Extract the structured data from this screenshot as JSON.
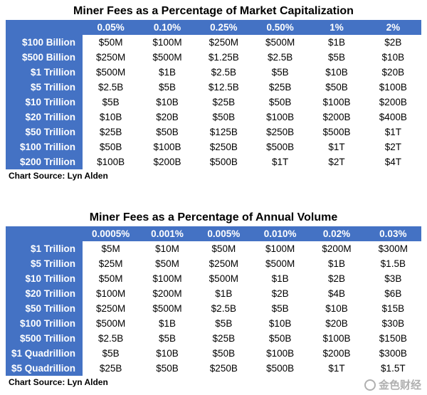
{
  "tables": [
    {
      "title": "Miner Fees as a Percentage of Market Capitalization",
      "columns": [
        "",
        "0.05%",
        "0.10%",
        "0.25%",
        "0.50%",
        "1%",
        "2%"
      ],
      "rows": [
        {
          "label": "$100 Billion",
          "values": [
            "$50M",
            "$100M",
            "$250M",
            "$500M",
            "$1B",
            "$2B"
          ]
        },
        {
          "label": "$500 Billion",
          "values": [
            "$250M",
            "$500M",
            "$1.25B",
            "$2.5B",
            "$5B",
            "$10B"
          ]
        },
        {
          "label": "$1 Trillion",
          "values": [
            "$500M",
            "$1B",
            "$2.5B",
            "$5B",
            "$10B",
            "$20B"
          ]
        },
        {
          "label": "$5 Trillion",
          "values": [
            "$2.5B",
            "$5B",
            "$12.5B",
            "$25B",
            "$50B",
            "$100B"
          ]
        },
        {
          "label": "$10 Trillion",
          "values": [
            "$5B",
            "$10B",
            "$25B",
            "$50B",
            "$100B",
            "$200B"
          ]
        },
        {
          "label": "$20 Trillion",
          "values": [
            "$10B",
            "$20B",
            "$50B",
            "$100B",
            "$200B",
            "$400B"
          ]
        },
        {
          "label": "$50 Trillion",
          "values": [
            "$25B",
            "$50B",
            "$125B",
            "$250B",
            "$500B",
            "$1T"
          ]
        },
        {
          "label": "$100 Trillion",
          "values": [
            "$50B",
            "$100B",
            "$250B",
            "$500B",
            "$1T",
            "$2T"
          ]
        },
        {
          "label": "$200 Trillion",
          "values": [
            "$100B",
            "$200B",
            "$500B",
            "$1T",
            "$2T",
            "$4T"
          ]
        }
      ],
      "source": "Chart Source: Lyn Alden"
    },
    {
      "title": "Miner Fees as a Percentage of Annual Volume",
      "columns": [
        "",
        "0.0005%",
        "0.001%",
        "0.005%",
        "0.010%",
        "0.02%",
        "0.03%"
      ],
      "rows": [
        {
          "label": "$1 Trillion",
          "values": [
            "$5M",
            "$10M",
            "$50M",
            "$100M",
            "$200M",
            "$300M"
          ]
        },
        {
          "label": "$5 Trillion",
          "values": [
            "$25M",
            "$50M",
            "$250M",
            "$500M",
            "$1B",
            "$1.5B"
          ]
        },
        {
          "label": "$10 Trillion",
          "values": [
            "$50M",
            "$100M",
            "$500M",
            "$1B",
            "$2B",
            "$3B"
          ]
        },
        {
          "label": "$20 Trillion",
          "values": [
            "$100M",
            "$200M",
            "$1B",
            "$2B",
            "$4B",
            "$6B"
          ]
        },
        {
          "label": "$50 Trillion",
          "values": [
            "$250M",
            "$500M",
            "$2.5B",
            "$5B",
            "$10B",
            "$15B"
          ]
        },
        {
          "label": "$100 Trillion",
          "values": [
            "$500M",
            "$1B",
            "$5B",
            "$10B",
            "$20B",
            "$30B"
          ]
        },
        {
          "label": "$500 Trillion",
          "values": [
            "$2.5B",
            "$5B",
            "$25B",
            "$50B",
            "$100B",
            "$150B"
          ]
        },
        {
          "label": "$1 Quadrillion",
          "values": [
            "$5B",
            "$10B",
            "$50B",
            "$100B",
            "$200B",
            "$300B"
          ]
        },
        {
          "label": "$5 Quadrillion",
          "values": [
            "$25B",
            "$50B",
            "$250B",
            "$500B",
            "$1T",
            "$1.5T"
          ]
        }
      ],
      "source": "Chart Source: Lyn Alden"
    }
  ],
  "watermark": {
    "text": "金色财经"
  },
  "colors": {
    "header_bg": "#4472c4",
    "header_text": "#ffffff"
  }
}
